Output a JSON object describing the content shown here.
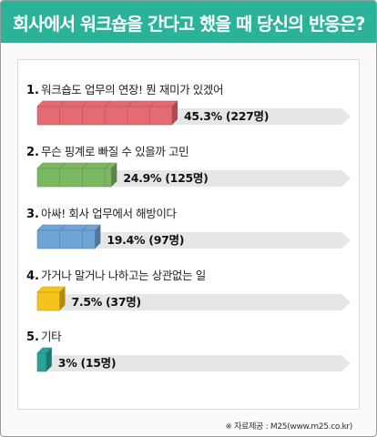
{
  "header": {
    "title": "회사에서 워크숍을 간다고 했을 때 당신의 반응은?",
    "color": "#2bb39a"
  },
  "chart_data": {
    "type": "bar",
    "orientation": "horizontal",
    "unit": "%",
    "categories": [
      "워크숍도 업무의 연장! 뭔 재미가 있겠어",
      "무슨 핑계로 빠질 수 있을까 고민",
      "아싸! 회사 업무에서 해방이다",
      "가거나 말거나 나하고는 상관없는 일",
      "기타"
    ],
    "values": [
      45.3,
      24.9,
      19.4,
      7.5,
      3
    ],
    "counts": [
      227,
      125,
      97,
      37,
      15
    ],
    "value_labels": [
      "45.3% (227명)",
      "24.9% (125명)",
      "19.4% (97명)",
      "7.5% (37명)",
      "3% (15명)"
    ],
    "numbers": [
      "1.",
      "2.",
      "3.",
      "4.",
      "5."
    ],
    "bar_colors": [
      "#e56b73",
      "#7cb862",
      "#6ea5d4",
      "#f3c21b",
      "#2aa39a"
    ],
    "track_color": "#e6e6e6"
  },
  "source": "※ 자료제공 : M25(www.m25.co.kr)"
}
